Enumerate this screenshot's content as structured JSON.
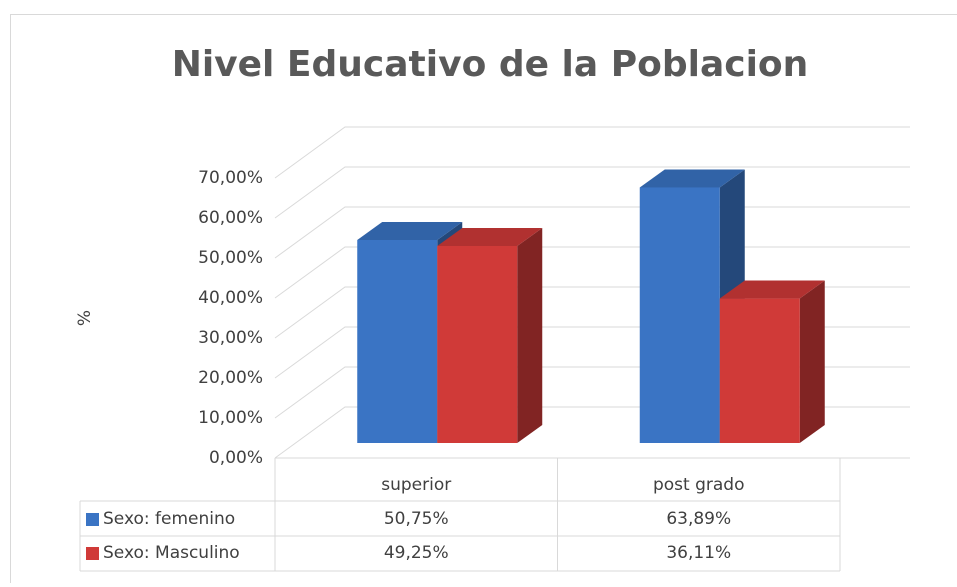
{
  "chart_data": {
    "type": "bar3d",
    "title": "Nivel Educativo de la Poblacion",
    "ylabel": "%",
    "categories": [
      "superior",
      "post grado"
    ],
    "series": [
      {
        "name": "Sexo: femenino",
        "color": "#3a74c4",
        "values": [
          50.75,
          63.89
        ],
        "value_labels": [
          "50,75%",
          "63,89%"
        ]
      },
      {
        "name": "Sexo: Masculino",
        "color": "#d03a38",
        "values": [
          49.25,
          36.11
        ],
        "value_labels": [
          "49,25%",
          "36,11%"
        ]
      }
    ],
    "ylim": [
      0,
      70
    ],
    "yticks": [
      {
        "value": 0,
        "label": "0,00%"
      },
      {
        "value": 10,
        "label": "10,00%"
      },
      {
        "value": 20,
        "label": "20,00%"
      },
      {
        "value": 30,
        "label": "30,00%"
      },
      {
        "value": 40,
        "label": "40,00%"
      },
      {
        "value": 50,
        "label": "50,00%"
      },
      {
        "value": 60,
        "label": "60,00%"
      },
      {
        "value": 70,
        "label": "70,00%"
      }
    ],
    "grid": true,
    "legend": "table"
  }
}
